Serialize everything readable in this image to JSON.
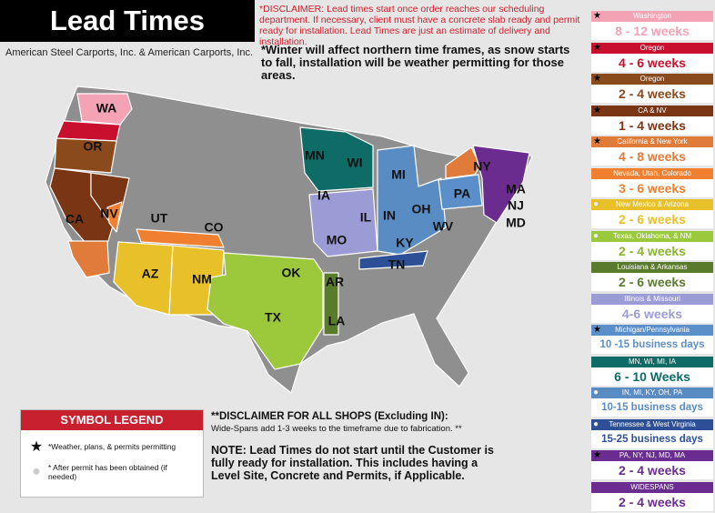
{
  "header": {
    "title": "Lead Times",
    "subtitle": "American Steel Carports, Inc. & American Carports, Inc."
  },
  "disclaimer_top": "*DISCLAIMER: Lead times start once order reaches our scheduling department. If necessary, client must have a concrete slab ready and permit ready for installation. Lead Times are just an estimate of delivery and installation.",
  "winter_note": "*Winter will affect northern time frames, as snow starts to fall, installation will be weather permitting for those areas.",
  "map": {
    "labels": [
      "WA",
      "OR",
      "CA",
      "NV",
      "UT",
      "CO",
      "AZ",
      "NM",
      "OK",
      "TX",
      "AR",
      "LA",
      "MN",
      "WI",
      "IA",
      "MO",
      "IL",
      "MI",
      "IN",
      "OH",
      "KY",
      "TN",
      "WV",
      "PA",
      "NY",
      "MA",
      "NJ",
      "MD"
    ]
  },
  "legend": [
    {
      "region": "Washington",
      "time": "8 - 12 weeks",
      "color": "#f4a3b5",
      "text_color": "#f4a3b5",
      "symbol": "star"
    },
    {
      "region": "Oregon",
      "time": "4 - 6 weeks",
      "color": "#c8102e",
      "text_color": "#c8102e",
      "symbol": "star"
    },
    {
      "region": "Oregon",
      "time": "2 - 4 weeks",
      "color": "#8b4a1c",
      "text_color": "#8b4a1c",
      "symbol": "star"
    },
    {
      "region": "CA & NV",
      "time": "1 - 4 weeks",
      "color": "#7a3515",
      "text_color": "#7a3515",
      "symbol": "star"
    },
    {
      "region": "California & New York",
      "time": "4 - 8 weeks",
      "color": "#e07b39",
      "text_color": "#e07b39",
      "symbol": "star"
    },
    {
      "region": "Nevada, Utah, Colorado",
      "time": "3 - 6 weeks",
      "color": "#f08030",
      "text_color": "#f08030",
      "symbol": null
    },
    {
      "region": "New Mexico & Arizona",
      "time": "2 - 6 weeks",
      "color": "#e8c12a",
      "text_color": "#e8c12a",
      "symbol": "dot"
    },
    {
      "region": "Texas, Oklahoma, & NM",
      "time": "2 - 4 weeks",
      "color": "#9cc93b",
      "text_color": "#8ab52e",
      "symbol": "dot"
    },
    {
      "region": "Louisiana & Arkansas",
      "time": "2 - 6 weeks",
      "color": "#5a7a2c",
      "text_color": "#5a7a2c",
      "symbol": null
    },
    {
      "region": "Illinois & Missouri",
      "time": "4-6 weeks",
      "color": "#9b9bd6",
      "text_color": "#9b9bd6",
      "symbol": null
    },
    {
      "region": "Michigan/Pennsylvania",
      "time": "10 -15 business days",
      "color": "#5b8fc9",
      "text_color": "#5b8fc9",
      "symbol": "star"
    },
    {
      "region": "MN, WI, MI, IA",
      "time": "6 - 10 Weeks",
      "color": "#0f6b66",
      "text_color": "#0f6b66",
      "symbol": null
    },
    {
      "region": "IN, MI, KY, OH, PA",
      "time": "10-15 business days",
      "color": "#5a8cc4",
      "text_color": "#5a8cc4",
      "symbol": "dot"
    },
    {
      "region": "Tennessee & West Virginia",
      "time": "15-25 business days",
      "color": "#2c4f96",
      "text_color": "#2c4f96",
      "symbol": "dot"
    },
    {
      "region": "PA, NY, NJ, MD, MA",
      "time": "2 - 4 weeks",
      "color": "#6b2c8f",
      "text_color": "#6b2c8f",
      "symbol": "star"
    },
    {
      "region": "WIDESPANS",
      "time": "2 - 4 weeks",
      "color": "#6b2c8f",
      "text_color": "#6b2c8f",
      "symbol": null
    }
  ],
  "symbol_legend": {
    "title": "SYMBOL LEGEND",
    "items": [
      "*Weather, plans, & permits permitting",
      "* After permit has been obtained (if needed)"
    ]
  },
  "disclaimer_shops": {
    "title": "**DISCLAIMER FOR ALL SHOPS (Excluding IN):",
    "text": "Wide-Spans add 1-3 weeks to the timeframe due to fabrication. **"
  },
  "note": "NOTE: Lead Times do not start until the Customer is fully ready for installation. This includes having a Level Site, Concrete and Permits, if Applicable."
}
